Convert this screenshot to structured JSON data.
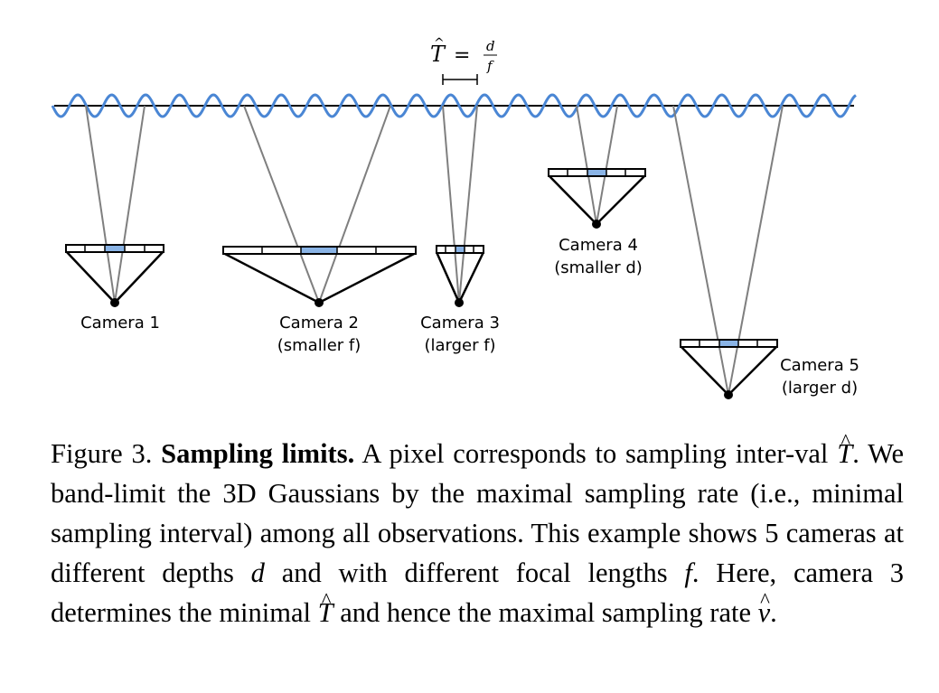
{
  "figure": {
    "annotation": {
      "symbol": "T",
      "equals": "=",
      "numerator": "d",
      "denominator": "f"
    },
    "colors": {
      "wave": "#4a86d4",
      "pixel": "#8ab4e6",
      "ray": "#7f7f7f",
      "line": "#000000"
    },
    "cameras": [
      {
        "label": "Camera 1",
        "sublabel": ""
      },
      {
        "label": "Camera 2",
        "sublabel": "(smaller f)"
      },
      {
        "label": "Camera 3",
        "sublabel": "(larger f)"
      },
      {
        "label": "Camera 4",
        "sublabel": "(smaller d)"
      },
      {
        "label": "Camera 5",
        "sublabel": "(larger d)"
      }
    ]
  },
  "caption": {
    "figure_number": "Figure 3.",
    "title": "Sampling limits.",
    "p1": "A pixel corresponds to sampling inter-val",
    "T": "T",
    "p2": ". We band-limit the 3D Gaussians by the maximal sampling rate (i.e., minimal sampling interval) among all observations. This example shows 5 cameras at different depths",
    "d": "d",
    "p3": "and with different focal lengths",
    "f": "f",
    "p4": ". Here, camera 3 determines the minimal",
    "T2": "T",
    "p5": "and hence the maximal sampling rate",
    "nu": "ν",
    "p6": "."
  }
}
